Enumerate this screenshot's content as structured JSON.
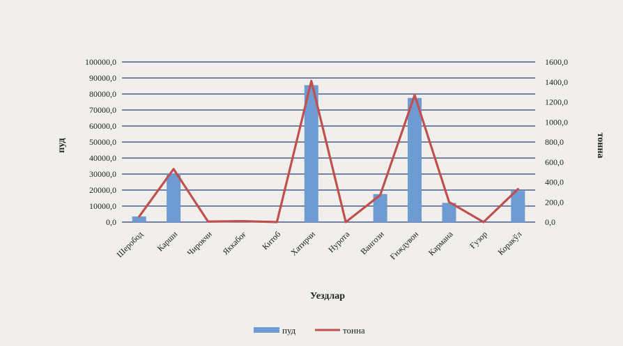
{
  "chart_data": {
    "type": "bar",
    "categories": [
      "Шеробод",
      "Карши",
      "Чирокчи",
      "Яккабоғ",
      "Китоб",
      "Хатирчи",
      "Нурота",
      "Вангози",
      "Ғиждувон",
      "Кармана",
      "Ғузор",
      "Коракўл"
    ],
    "series": [
      {
        "name": "пуд",
        "type": "bar",
        "axis": "left",
        "color": "#6f9bd3",
        "values": [
          3500,
          30500,
          0,
          0,
          0,
          85500,
          0,
          17500,
          77500,
          12000,
          0,
          19500
        ]
      },
      {
        "name": "тонна",
        "type": "line",
        "axis": "right",
        "color": "#c0504d",
        "values": [
          55,
          530,
          5,
          10,
          0,
          1410,
          0,
          270,
          1270,
          200,
          0,
          330
        ]
      }
    ],
    "ylabel": "пуд",
    "y2label": "тонна",
    "xlabel": "Уездлар",
    "ylim": [
      0,
      100000
    ],
    "y2lim": [
      0,
      1600
    ],
    "yticks": [
      "0,0",
      "10000,0",
      "20000,0",
      "30000,0",
      "40000,0",
      "50000,0",
      "60000,0",
      "70000,0",
      "80000,0",
      "90000,0",
      "100000,0"
    ],
    "y2ticks": [
      "0,0",
      "200,0",
      "400,0",
      "600,0",
      "800,0",
      "1000,0",
      "1200,0",
      "1400,0",
      "1600,0"
    ],
    "grid": true,
    "legend": "bottom"
  }
}
